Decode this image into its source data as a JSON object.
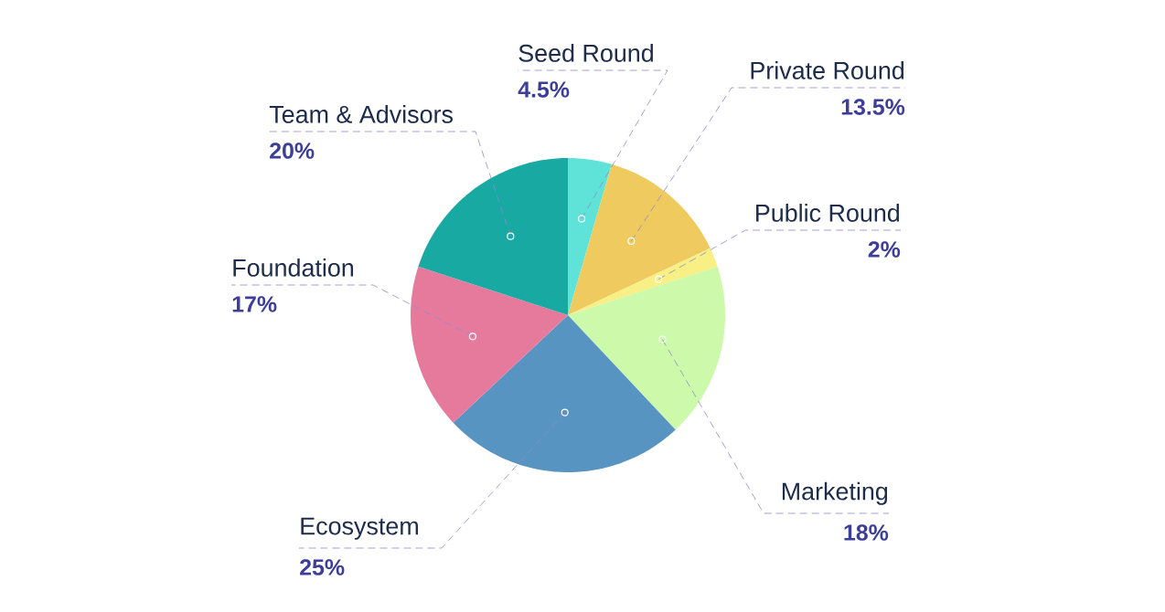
{
  "chart_data": {
    "type": "pie",
    "categories": [
      "Seed Round",
      "Private Round",
      "Public Round",
      "Marketing",
      "Ecosystem",
      "Foundation",
      "Team & Advisors"
    ],
    "values": [
      4.5,
      13.5,
      2,
      18,
      25,
      17,
      20
    ],
    "colors": [
      "#5fe3d9",
      "#eeca5f",
      "#f8ef85",
      "#cdf9aa",
      "#5794c2",
      "#e57a9d",
      "#18a9a2"
    ],
    "value_labels": [
      "4.5%",
      "13.5%",
      "2%",
      "18%",
      "25%",
      "17%",
      "20%"
    ]
  }
}
